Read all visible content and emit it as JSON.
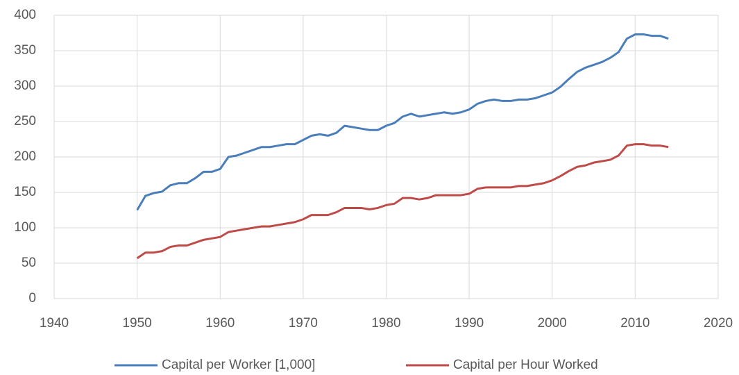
{
  "chart_data": {
    "type": "line",
    "x": [
      1950,
      1951,
      1952,
      1953,
      1954,
      1955,
      1956,
      1957,
      1958,
      1959,
      1960,
      1961,
      1962,
      1963,
      1964,
      1965,
      1966,
      1967,
      1968,
      1969,
      1970,
      1971,
      1972,
      1973,
      1974,
      1975,
      1976,
      1977,
      1978,
      1979,
      1980,
      1981,
      1982,
      1983,
      1984,
      1985,
      1986,
      1987,
      1988,
      1989,
      1990,
      1991,
      1992,
      1993,
      1994,
      1995,
      1996,
      1997,
      1998,
      1999,
      2000,
      2001,
      2002,
      2003,
      2004,
      2005,
      2006,
      2007,
      2008,
      2009,
      2010,
      2011,
      2012,
      2013,
      2014
    ],
    "series": [
      {
        "name": "Capital per Worker [1,000]",
        "color": "#4a7ebb",
        "values": [
          125,
          145,
          149,
          151,
          160,
          163,
          163,
          170,
          179,
          179,
          183,
          200,
          202,
          206,
          210,
          214,
          214,
          216,
          218,
          218,
          224,
          230,
          232,
          230,
          234,
          244,
          242,
          240,
          238,
          238,
          244,
          248,
          257,
          261,
          257,
          259,
          261,
          263,
          261,
          263,
          267,
          275,
          279,
          281,
          279,
          279,
          281,
          281,
          283,
          287,
          291,
          299,
          310,
          320,
          326,
          330,
          334,
          340,
          348,
          367,
          373,
          373,
          371,
          371,
          367
        ]
      },
      {
        "name": "Capital per Hour Worked",
        "color": "#be4b48",
        "values": [
          57,
          65,
          65,
          67,
          73,
          75,
          75,
          79,
          83,
          85,
          87,
          94,
          96,
          98,
          100,
          102,
          102,
          104,
          106,
          108,
          112,
          118,
          118,
          118,
          122,
          128,
          128,
          128,
          126,
          128,
          132,
          134,
          142,
          142,
          140,
          142,
          146,
          146,
          146,
          146,
          148,
          155,
          157,
          157,
          157,
          157,
          159,
          159,
          161,
          163,
          167,
          173,
          180,
          186,
          188,
          192,
          194,
          196,
          202,
          216,
          218,
          218,
          216,
          216,
          214
        ]
      }
    ],
    "xlim": [
      1940,
      2020
    ],
    "xticks": [
      1940,
      1950,
      1960,
      1970,
      1980,
      1990,
      2000,
      2010,
      2020
    ],
    "ylim": [
      0,
      400
    ],
    "yticks": [
      0,
      50,
      100,
      150,
      200,
      250,
      300,
      350,
      400
    ],
    "grid": true,
    "legend": "bottom"
  }
}
